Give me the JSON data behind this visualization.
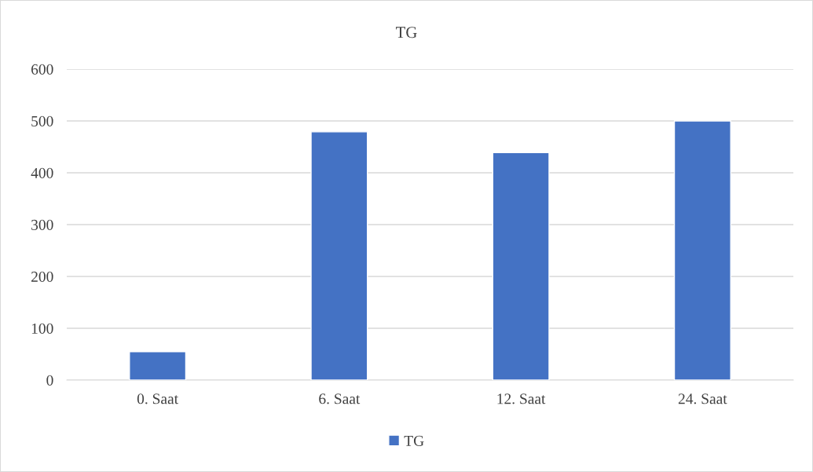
{
  "chart_data": {
    "type": "bar",
    "title": "TG",
    "categories": [
      "0. Saat",
      "6. Saat",
      "12. Saat",
      "24. Saat"
    ],
    "series": [
      {
        "name": "TG",
        "color": "#4472c4",
        "values": [
          55,
          479,
          439,
          500
        ]
      }
    ],
    "ylim": [
      0,
      600
    ],
    "yticks": [
      0,
      100,
      200,
      300,
      400,
      500,
      600
    ],
    "grid": "y",
    "legend": "bottom"
  }
}
